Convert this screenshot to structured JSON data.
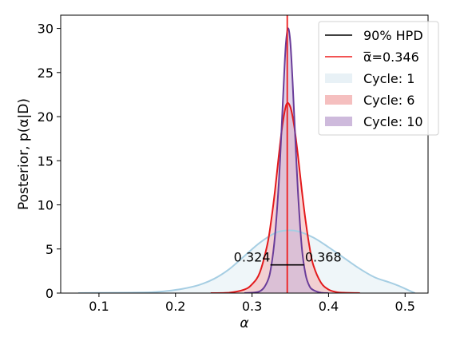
{
  "chart_data": {
    "type": "area",
    "xlabel": "α",
    "ylabel": "Posterior, p(α|D)",
    "xlim": [
      0.05,
      0.53
    ],
    "ylim": [
      0,
      31.5
    ],
    "xticks": [
      0.1,
      0.2,
      0.3,
      0.4,
      0.5
    ],
    "xtick_labels": [
      "0.1",
      "0.2",
      "0.3",
      "0.4",
      "0.5"
    ],
    "yticks": [
      0,
      5,
      10,
      15,
      20,
      25,
      30
    ],
    "ytick_labels": [
      "0",
      "5",
      "10",
      "15",
      "20",
      "25",
      "30"
    ],
    "grid": false,
    "legend_position": "top-right",
    "colors": {
      "hpd": "#000000",
      "mean": "#ee1c1c",
      "cycle1_fill": "#e5f0f5",
      "cycle1_line": "#a6cee3",
      "cycle6_fill": "#f4b8b8",
      "cycle6_line": "#e31a1c",
      "cycle10_fill": "#c9b3d8",
      "cycle10_line": "#6a3d9a"
    },
    "legend": [
      "90% HPD",
      "α̅=0.346",
      "Cycle: 1",
      "Cycle: 6",
      "Cycle: 10"
    ],
    "mean_line": {
      "x": 0.346,
      "label": "α̅=0.346"
    },
    "hpd": {
      "low": 0.324,
      "high": 0.368,
      "y": 3.2,
      "low_label": "0.324",
      "high_label": "0.368"
    },
    "series": [
      {
        "name": "Cycle: 1",
        "x": [
          0.073,
          0.1,
          0.14,
          0.17,
          0.19,
          0.21,
          0.23,
          0.25,
          0.27,
          0.29,
          0.31,
          0.33,
          0.345,
          0.36,
          0.38,
          0.4,
          0.42,
          0.44,
          0.46,
          0.48,
          0.495,
          0.505,
          0.513
        ],
        "y": [
          0,
          0.02,
          0.05,
          0.1,
          0.25,
          0.5,
          0.9,
          1.6,
          2.7,
          4.2,
          5.7,
          6.8,
          7.1,
          7.0,
          6.3,
          5.2,
          4.0,
          2.8,
          1.8,
          1.2,
          0.7,
          0.3,
          0
        ]
      },
      {
        "name": "Cycle: 6",
        "x": [
          0.246,
          0.27,
          0.29,
          0.3,
          0.31,
          0.32,
          0.325,
          0.33,
          0.335,
          0.34,
          0.345,
          0.35,
          0.355,
          0.36,
          0.365,
          0.37,
          0.375,
          0.38,
          0.39,
          0.4,
          0.41,
          0.42,
          0.441
        ],
        "y": [
          0,
          0.05,
          0.4,
          1.0,
          2.3,
          5.5,
          8.2,
          11.6,
          15.6,
          19.2,
          21.4,
          21.1,
          19.0,
          15.6,
          11.7,
          8.2,
          5.3,
          3.2,
          1.2,
          0.4,
          0.12,
          0.04,
          0
        ]
      },
      {
        "name": "Cycle: 10",
        "x": [
          0.29,
          0.31,
          0.32,
          0.325,
          0.33,
          0.335,
          0.338,
          0.341,
          0.344,
          0.347,
          0.35,
          0.353,
          0.356,
          0.36,
          0.365,
          0.37,
          0.375,
          0.38,
          0.39,
          0.4
        ],
        "y": [
          0,
          0.2,
          1.3,
          3.0,
          6.5,
          12.5,
          17.5,
          23.0,
          28.0,
          30.0,
          28.5,
          24.0,
          18.5,
          11.5,
          5.2,
          2.1,
          0.8,
          0.35,
          0.05,
          0
        ]
      }
    ]
  }
}
